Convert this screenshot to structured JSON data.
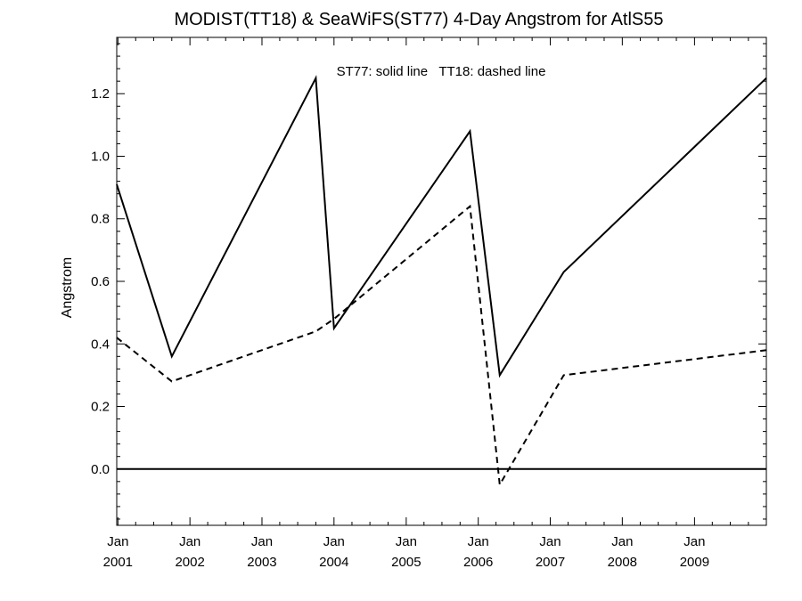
{
  "chart_data": {
    "type": "line",
    "title": "MODIST(TT18) & SeaWiFS(ST77) 4-Day Angstrom for AtlS55",
    "ylabel": "Angstrom",
    "xlabel": "",
    "annotation": "ST77: solid line   TT18: dashed line",
    "xlim": [
      "2000-12-26",
      "2009-12-31"
    ],
    "ylim": [
      -0.18,
      1.38
    ],
    "y_ticks": [
      0.0,
      0.2,
      0.4,
      0.6,
      0.8,
      1.0,
      1.2
    ],
    "y_tick_labels": [
      "0.0",
      "0.2",
      "0.4",
      "0.6",
      "0.8",
      "1.0",
      "1.2"
    ],
    "x_ticks": [
      {
        "date": "2001-01-01",
        "line1": "Jan",
        "line2": "2001"
      },
      {
        "date": "2002-01-01",
        "line1": "Jan",
        "line2": "2002"
      },
      {
        "date": "2003-01-01",
        "line1": "Jan",
        "line2": "2003"
      },
      {
        "date": "2004-01-01",
        "line1": "Jan",
        "line2": "2004"
      },
      {
        "date": "2005-01-01",
        "line1": "Jan",
        "line2": "2005"
      },
      {
        "date": "2006-01-01",
        "line1": "Jan",
        "line2": "2006"
      },
      {
        "date": "2007-01-01",
        "line1": "Jan",
        "line2": "2007"
      },
      {
        "date": "2008-01-01",
        "line1": "Jan",
        "line2": "2008"
      },
      {
        "date": "2009-01-01",
        "line1": "Jan",
        "line2": "2009"
      }
    ],
    "reference_line": 0.0,
    "series": [
      {
        "style": "solid",
        "x": [
          "2000-12-26",
          "2001-10-01",
          "2003-10-01",
          "2004-01-01",
          "2005-11-20",
          "2006-04-20",
          "2007-03-10",
          "2009-12-31"
        ],
        "y": [
          0.91,
          0.36,
          1.25,
          0.45,
          1.08,
          0.3,
          0.63,
          1.25
        ]
      },
      {
        "style": "dashed",
        "x": [
          "2000-12-26",
          "2001-10-01",
          "2003-10-01",
          "2004-01-01",
          "2005-11-20",
          "2006-04-20",
          "2007-03-10",
          "2009-12-31"
        ],
        "y": [
          0.42,
          0.28,
          0.44,
          0.48,
          0.84,
          -0.05,
          0.3,
          0.38
        ]
      }
    ],
    "colors": {
      "line": "#000000",
      "background": "#ffffff"
    }
  }
}
